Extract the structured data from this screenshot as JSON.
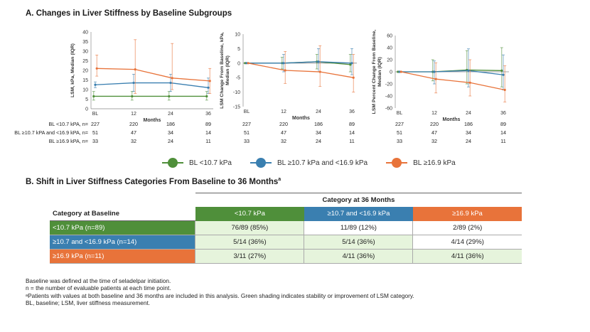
{
  "section_a_title": "A. Changes in Liver Stiffness by Baseline Subgroups",
  "section_b_title": "B. Shift in Liver Stiffness Categories From Baseline to 36 Months",
  "section_b_superscript": "a",
  "colors": {
    "green": "#4f8f3a",
    "blue": "#3a7fb0",
    "orange": "#e8733a"
  },
  "chart_data": [
    {
      "type": "line",
      "ylabel": "LSM, kPa, Median (IQR)",
      "xlabel": "Months",
      "x": [
        "BL",
        "12",
        "24",
        "36"
      ],
      "ylim": [
        0,
        40
      ],
      "yticks": [
        0,
        5,
        10,
        15,
        20,
        25,
        30,
        35,
        40
      ],
      "series": [
        {
          "name": "BL <10.7 kPa",
          "color": "#4f8f3a",
          "values": [
            6.5,
            6.5,
            6.5,
            6.5
          ],
          "lower": [
            4.5,
            4.5,
            4.5,
            4.5
          ],
          "upper": [
            9,
            9,
            9,
            9
          ]
        },
        {
          "name": "BL ≥10.7 kPa and <16.9 kPa",
          "color": "#3a7fb0",
          "values": [
            12.5,
            13.5,
            13.5,
            11
          ],
          "lower": [
            11,
            9,
            9,
            8
          ],
          "upper": [
            14,
            18,
            18,
            16
          ]
        },
        {
          "name": "BL ≥16.9 kPa",
          "color": "#e8733a",
          "values": [
            21,
            20.5,
            16,
            14.5
          ],
          "lower": [
            17,
            8,
            10,
            8
          ],
          "upper": [
            28,
            36,
            34,
            21
          ]
        }
      ]
    },
    {
      "type": "line",
      "ylabel": "LSM Change From Baseline, kPa, Median (IQR)",
      "xlabel": "Months",
      "x": [
        "BL",
        "12",
        "24",
        "36"
      ],
      "ylim": [
        -15,
        10
      ],
      "yticks": [
        -15,
        -10,
        -5,
        0,
        5,
        10
      ],
      "series": [
        {
          "name": "BL <10.7 kPa",
          "color": "#4f8f3a",
          "values": [
            0,
            0,
            0.5,
            -0.5
          ],
          "lower": [
            0,
            -2,
            -2,
            -3
          ],
          "upper": [
            0,
            2,
            3,
            3
          ]
        },
        {
          "name": "BL ≥10.7 kPa and <16.9 kPa",
          "color": "#3a7fb0",
          "values": [
            0,
            0,
            0.5,
            0
          ],
          "lower": [
            0,
            -3,
            -3,
            -4
          ],
          "upper": [
            0,
            3,
            5,
            5
          ]
        },
        {
          "name": "BL ≥16.9 kPa",
          "color": "#e8733a",
          "values": [
            0,
            -2.5,
            -3,
            -5
          ],
          "lower": [
            0,
            -7,
            -8,
            -10
          ],
          "upper": [
            0,
            4,
            6,
            3
          ]
        }
      ]
    },
    {
      "type": "line",
      "ylabel": "LSM Percent Change From Baseline, Median (IQR)",
      "xlabel": "Months",
      "x": [
        "BL",
        "12",
        "24",
        "36"
      ],
      "ylim": [
        -60,
        60
      ],
      "yticks": [
        -60,
        -40,
        -20,
        0,
        20,
        40,
        60
      ],
      "series": [
        {
          "name": "BL <10.7 kPa",
          "color": "#4f8f3a",
          "values": [
            0,
            0,
            3,
            2
          ],
          "lower": [
            0,
            -15,
            -20,
            -25
          ],
          "upper": [
            0,
            20,
            35,
            40
          ]
        },
        {
          "name": "BL ≥10.7 kPa and <16.9 kPa",
          "color": "#3a7fb0",
          "values": [
            0,
            0,
            2,
            -5
          ],
          "lower": [
            0,
            -20,
            -25,
            -30
          ],
          "upper": [
            0,
            18,
            38,
            28
          ]
        },
        {
          "name": "BL ≥16.9 kPa",
          "color": "#e8733a",
          "values": [
            0,
            -12,
            -18,
            -30
          ],
          "lower": [
            0,
            -35,
            -40,
            -50
          ],
          "upper": [
            0,
            15,
            20,
            10
          ]
        }
      ]
    }
  ],
  "n_rows": [
    {
      "label": "BL <10.7 kPA, n=",
      "values": [
        "227",
        "220",
        "186",
        "89"
      ]
    },
    {
      "label": "BL ≥10.7 kPA and <16.9 kPA, n=",
      "values": [
        "51",
        "47",
        "34",
        "14"
      ]
    },
    {
      "label": "BL ≥16.9 kPA, n=",
      "values": [
        "33",
        "32",
        "24",
        "11"
      ]
    }
  ],
  "legend": [
    "BL <10.7 kPa",
    "BL ≥10.7 kPa and <16.9 kPa",
    "BL ≥16.9 kPa"
  ],
  "shift_table": {
    "span_header": "Category at 36 Months",
    "row_header": "Category at Baseline",
    "columns": [
      "<10.7 kPa",
      "≥10.7 and <16.9 kPa",
      "≥16.9 kPa"
    ],
    "rows": [
      {
        "label": "<10.7 kPa (n=89)",
        "cells": [
          "76/89 (85%)",
          "11/89 (12%)",
          "2/89 (2%)"
        ]
      },
      {
        "label": "≥10.7 and <16.9 kPa (n=14)",
        "cells": [
          "5/14 (36%)",
          "5/14 (36%)",
          "4/14 (29%)"
        ]
      },
      {
        "label": "≥16.9 kPa (n=11)",
        "cells": [
          "3/11 (27%)",
          "4/11 (36%)",
          "4/11 (36%)"
        ]
      }
    ]
  },
  "footnotes": [
    "Baseline was defined at the time of seladelpar initiation.",
    "n = the number of evaluable patients at each time point.",
    "ᵃPatients with values at both baseline and 36 months are included in this analysis. Green shading indicates stability or improvement of LSM category.",
    "BL, baseline; LSM, liver stiffness measurement."
  ]
}
